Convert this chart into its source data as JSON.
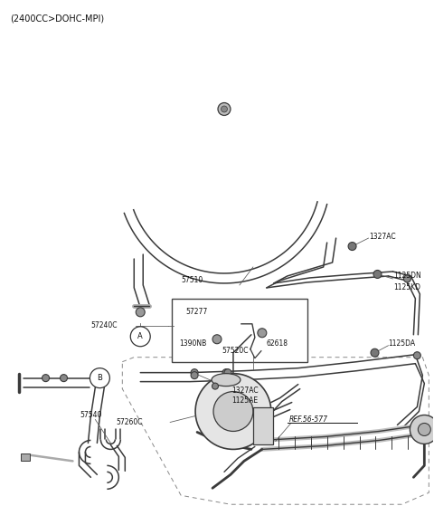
{
  "title": "(2400CC>DOHC-MPI)",
  "bg": "#ffffff",
  "lc": "#3a3a3a",
  "tc": "#111111",
  "figsize": [
    4.8,
    5.8
  ],
  "dpi": 100,
  "xlim": [
    0,
    480
  ],
  "ylim": [
    0,
    580
  ]
}
